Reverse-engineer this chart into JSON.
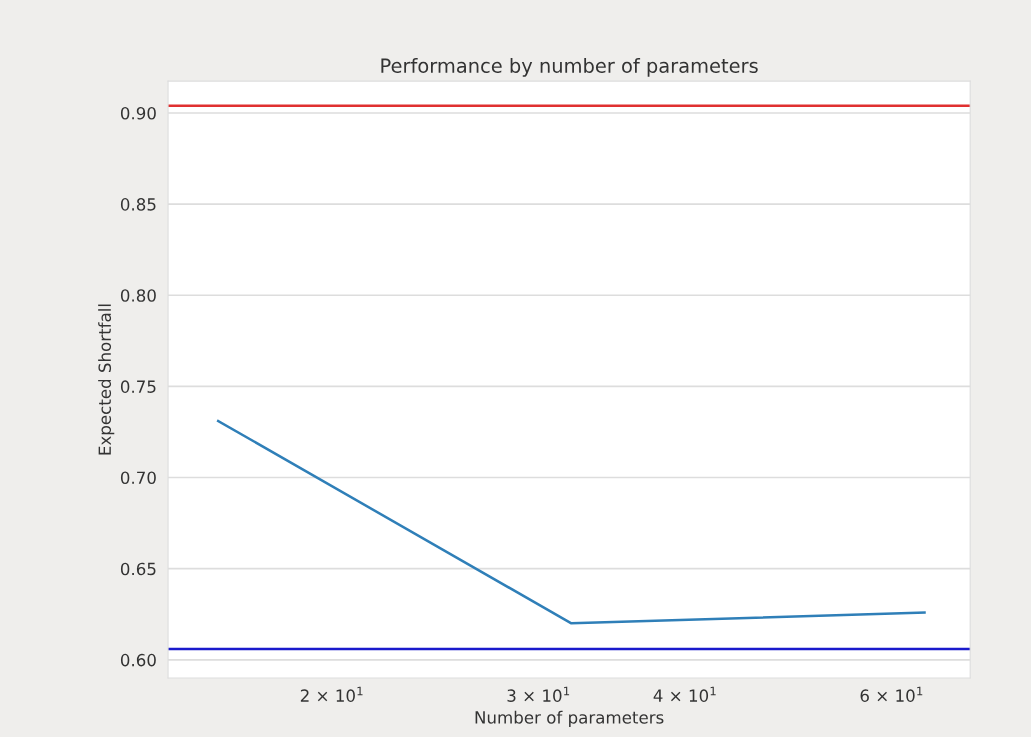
{
  "chart_data": {
    "type": "line",
    "title": "Performance by number of parameters",
    "xlabel": "Number of parameters",
    "ylabel": "Expected Shortfall",
    "x": [
      16,
      32,
      64
    ],
    "series": [
      {
        "color": "#2f7fb8",
        "values": [
          0.731,
          0.62,
          0.626
        ]
      }
    ],
    "log": "x",
    "xlim": [
      14.5,
      70
    ],
    "xticks": [
      {
        "value": 20,
        "label": "2 × 10$^{1}$"
      },
      {
        "value": 30,
        "label": "3 × 10$^{1}$"
      },
      {
        "value": 40,
        "label": "4 × 10$^{1}$"
      },
      {
        "value": 60,
        "label": "6 × 10$^{1}$"
      }
    ],
    "ylim": [
      0.59,
      0.9175
    ],
    "yticks": [
      {
        "value": 0.6,
        "label": "0.60"
      },
      0.65,
      {
        "value": 0.7,
        "label": "0.70"
      },
      0.75,
      {
        "value": 0.8,
        "label": "0.80"
      },
      0.85,
      {
        "value": 0.9,
        "label": "0.90"
      }
    ],
    "ref_lines": [
      {
        "axis": "y",
        "value": 0.904,
        "color": "#e03030"
      },
      {
        "axis": "y",
        "value": 0.606,
        "color": "#1a1acc"
      }
    ],
    "grid": "y"
  }
}
